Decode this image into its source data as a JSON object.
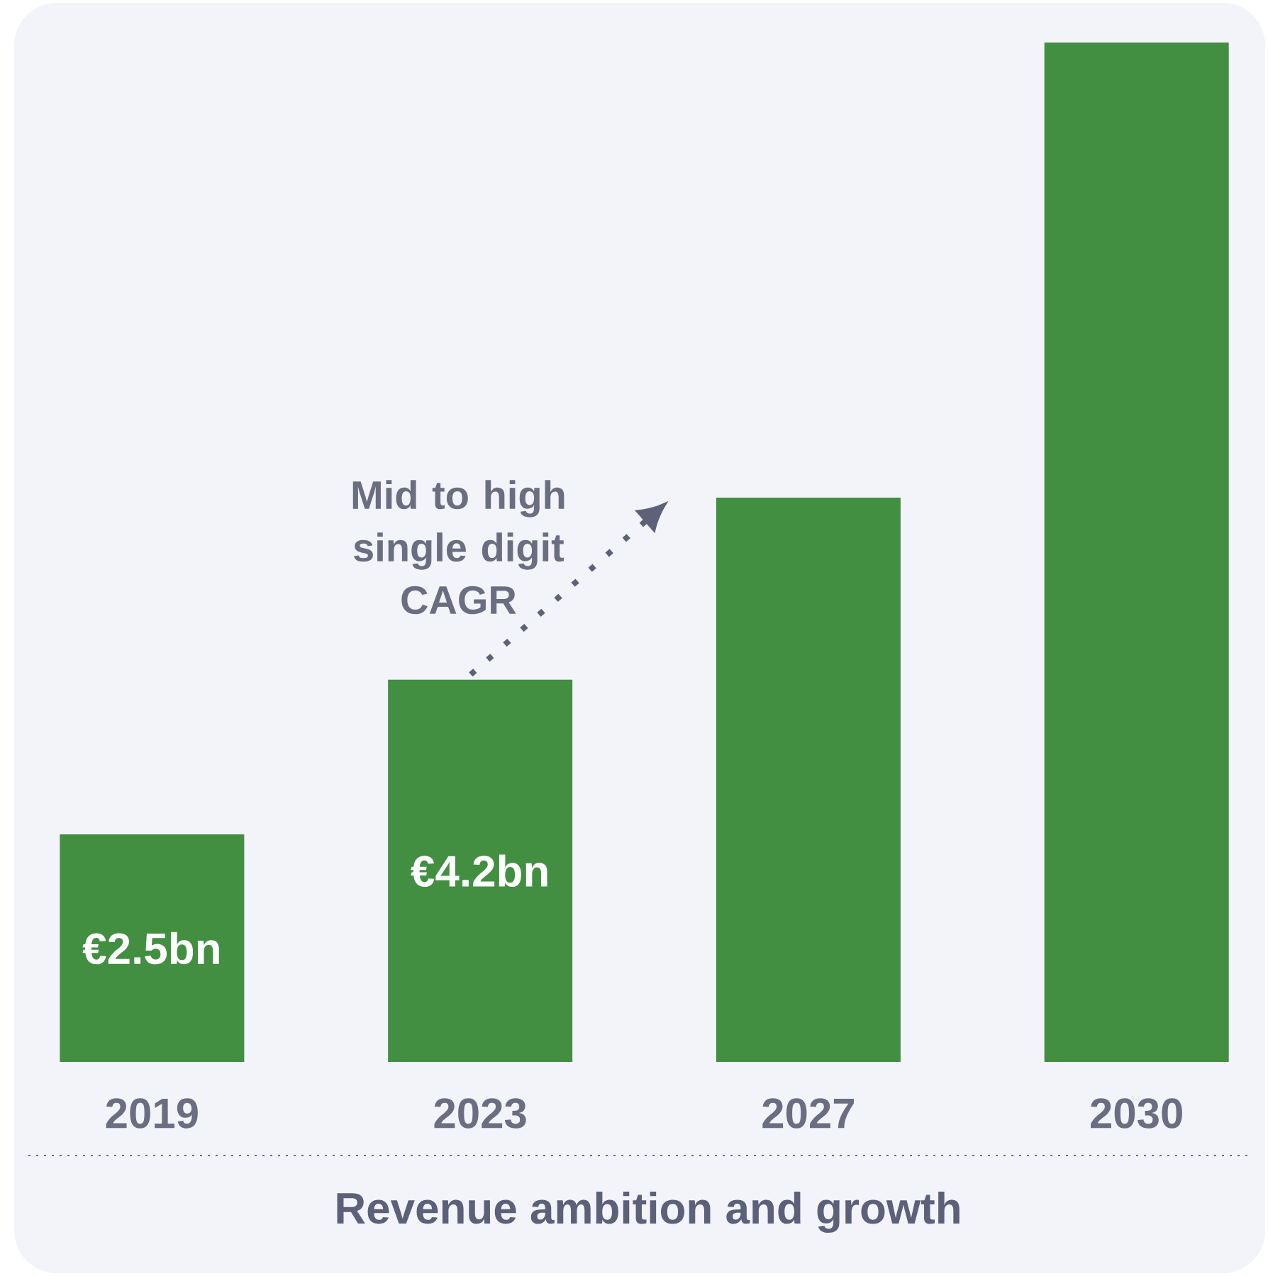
{
  "chart_data": {
    "type": "bar",
    "title": "Revenue ambition and growth",
    "categories": [
      "2019",
      "2023",
      "2027",
      "2030"
    ],
    "values": [
      2.5,
      4.2,
      6.2,
      11.2
    ],
    "value_labels": [
      "€2.5bn",
      "€4.2bn",
      null,
      null
    ],
    "color": "#428f41",
    "annotations": [
      "Mid to high single digit CAGR"
    ]
  }
}
